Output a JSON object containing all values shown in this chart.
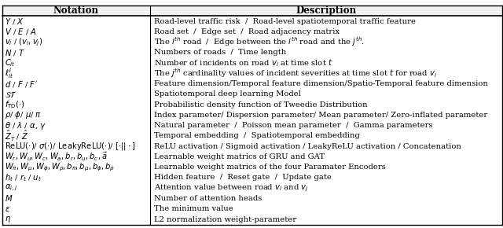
{
  "col1_header": "Notation",
  "col2_header": "Description",
  "rows": [
    [
      "$Y$ / $X$",
      "Road-level traffic risk  /  Road-level spatiotemporal traffic feature"
    ],
    [
      "$V$ / $E$ / $A$",
      "Road set  /  Edge set  /  Road adjacency matrix"
    ],
    [
      "$v_i$ / $(v_i, v_j)$",
      "The $i^{th}$ road  /  Edge between the $i^{th}$ road and the $j^{th}$."
    ],
    [
      "$N$ / $T$",
      "Numbers of roads  /  Time length"
    ],
    [
      "$C_{it}$",
      "Number of incidents on road $v_i$ at time slot $t$"
    ],
    [
      "$\\ell^j_{it}$",
      "The $j^{th}$ cardinality values of incident severities at time slot $t$ for road $v_i$"
    ],
    [
      "$d$ / $F$ / $F'$",
      "Feature dimension/Temporal feature dimension/Spatio-Temporal feature dimension"
    ],
    [
      "$\\mathcal{ST}$",
      "Spatiotemporal deep learning Model"
    ],
    [
      "$f_{\\mathrm{TD}}(\\cdot)$",
      "Probabilistic density function of Tweedie Distribution"
    ],
    [
      "$\\rho$/ $\\phi$/ $\\mu$/ $\\pi$",
      "Index parameter/ Dispersion parameter/ Mean parameter/ Zero-inflated parameter"
    ],
    [
      "$\\theta$ / $\\lambda$ / $\\alpha$, $\\gamma$",
      "Natural parameter  /  Poisson mean parameter  /  Gamma parameters"
    ],
    [
      "$\\hat{Z}_T$ / $\\hat{Z}$",
      "Temporal embedding  /  Spatiotemporal embedding"
    ],
    [
      "$\\mathrm{ReLU}(\\cdot)$/ $\\sigma(\\cdot)$/ $\\mathrm{LeakyReLU}(\\cdot)$/ $[\\cdot||\\cdot]$",
      "ReLU activation / Sigmoid activation / LeakyReLU activation / Concatenation"
    ],
    [
      "$W_r, W_u, W_c, W_a, b_r, b_u, b_c, \\vec{a}$",
      "Learnable weight matrics of GRU and GAT"
    ],
    [
      "$W_\\pi, W_\\mu, W_\\phi, W_\\rho, b_\\pi, b_\\mu, b_\\phi, b_\\rho$",
      "Learnable weight matrics of the four Paramater Encoders"
    ],
    [
      "$h_t$ / $r_t$ / $u_t$",
      "Hidden feature  /  Reset gate  /  Update gate"
    ],
    [
      "$\\alpha_{i,j}$",
      "Attention value between road $v_i$ and $v_j$"
    ],
    [
      "$M$",
      "Number of attention heads"
    ],
    [
      "$\\epsilon$",
      "The minimum value"
    ],
    [
      "$\\eta$",
      "L2 normalization weight-parameter"
    ]
  ],
  "col_split": 0.295,
  "background": "#ffffff",
  "header_bg": "#f2f2f2",
  "border_color": "#000000",
  "text_color": "#000000",
  "fontsize": 7.2,
  "header_fontsize": 8.5
}
